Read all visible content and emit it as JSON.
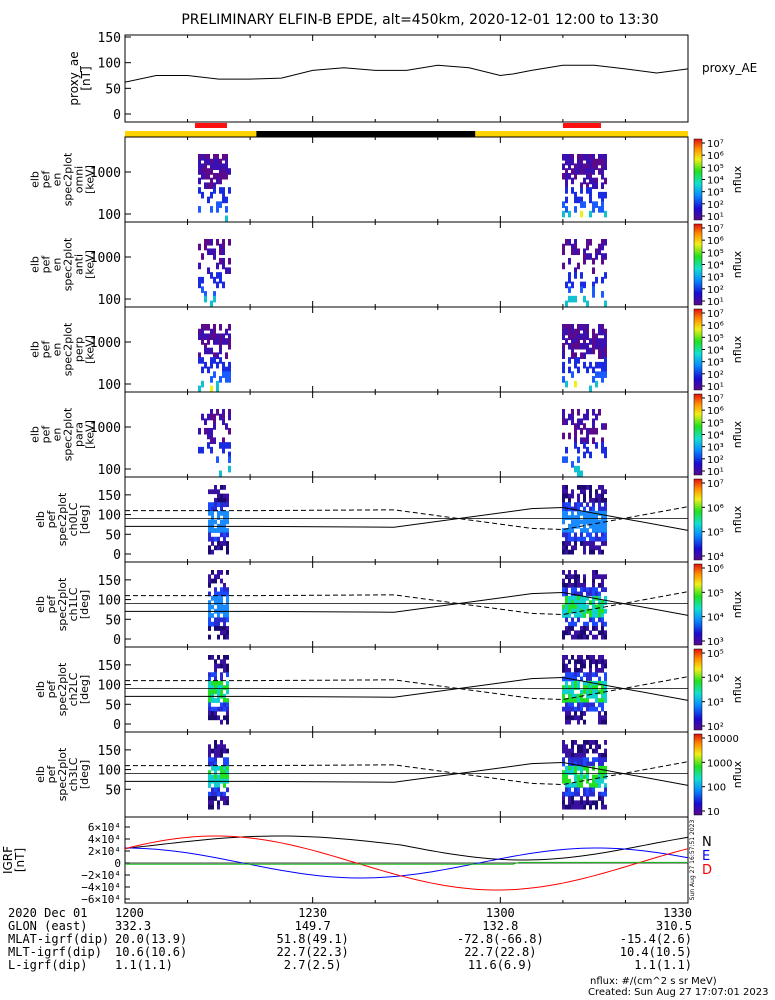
{
  "title": "PRELIMINARY ELFIN-B EPDE, alt=450km, 2020-12-01 12:00 to 13:30",
  "chart_data": {
    "type": "heatmap",
    "proxy_ae": {
      "ylabel": [
        "proxy_ae",
        "[nT]"
      ],
      "legend": "proxy_AE",
      "yticks": [
        "150",
        "100",
        "50",
        "0"
      ],
      "ylim": [
        0,
        150
      ],
      "t_min": [
        0,
        5,
        10,
        15,
        20,
        25,
        30,
        35,
        40,
        45,
        50,
        55,
        60,
        62,
        65,
        70,
        75,
        80,
        85,
        90
      ],
      "values": [
        62,
        75,
        75,
        68,
        68,
        70,
        85,
        90,
        85,
        85,
        95,
        90,
        75,
        78,
        85,
        95,
        95,
        88,
        80,
        88
      ]
    },
    "status_bar": {
      "colors": [
        "#FFD400",
        "#000000",
        "#FFD400"
      ]
    },
    "spectrogram_panels": [
      {
        "ylabel": [
          "elb",
          "pef",
          "en",
          "spec2plot",
          "omni",
          "[keV]"
        ],
        "yticks": [
          "1000",
          "100"
        ],
        "zlabel": "nflux",
        "cbar_ticks": [
          "10⁷",
          "10⁶",
          "10⁵",
          "10⁴",
          "10³",
          "10²",
          "10¹"
        ]
      },
      {
        "ylabel": [
          "elb",
          "pef",
          "en",
          "spec2plot",
          "anti",
          "[keV]"
        ],
        "yticks": [
          "1000",
          "100"
        ],
        "zlabel": "nflux",
        "cbar_ticks": [
          "10⁷",
          "10⁶",
          "10⁵",
          "10⁴",
          "10³",
          "10²",
          "10¹"
        ]
      },
      {
        "ylabel": [
          "elb",
          "pef",
          "en",
          "spec2plot",
          "perp",
          "[keV]"
        ],
        "yticks": [
          "1000",
          "100"
        ],
        "zlabel": "nflux",
        "cbar_ticks": [
          "10⁷",
          "10⁶",
          "10⁵",
          "10⁴",
          "10³",
          "10²",
          "10¹"
        ]
      },
      {
        "ylabel": [
          "elb",
          "pef",
          "en",
          "spec2plot",
          "para",
          "[keV]"
        ],
        "yticks": [
          "1000",
          "100"
        ],
        "zlabel": "nflux",
        "cbar_ticks": [
          "10⁷",
          "10⁶",
          "10⁵",
          "10⁴",
          "10³",
          "10²",
          "10¹"
        ]
      }
    ],
    "pitch_panels": [
      {
        "ylabel": [
          "elb",
          "pef",
          "spec2plot",
          "ch0LC",
          "[deg]"
        ],
        "yticks": [
          "150",
          "100",
          "50",
          "0"
        ],
        "zlabel": "nflux",
        "cbar_ticks": [
          "10⁷",
          "10⁶",
          "10⁵",
          "10⁴"
        ]
      },
      {
        "ylabel": [
          "elb",
          "pef",
          "spec2plot",
          "ch1LC",
          "[deg]"
        ],
        "yticks": [
          "150",
          "100",
          "50",
          "0"
        ],
        "zlabel": "nflux",
        "cbar_ticks": [
          "10⁶",
          "10⁵",
          "10⁴",
          "10³"
        ]
      },
      {
        "ylabel": [
          "elb",
          "pef",
          "spec2plot",
          "ch2LC",
          "[deg]"
        ],
        "yticks": [
          "150",
          "100",
          "50",
          "0"
        ],
        "zlabel": "nflux",
        "cbar_ticks": [
          "10⁵",
          "10⁴",
          "10³",
          "10²"
        ]
      },
      {
        "ylabel": [
          "elb",
          "pef",
          "spec2plot",
          "ch3LC",
          "[deg]"
        ],
        "yticks": [
          "150",
          "100",
          "50"
        ],
        "zlabel": "nflux",
        "cbar_ticks": [
          "10000",
          "1000",
          "100",
          "10"
        ]
      }
    ],
    "igrf": {
      "ylabel": [
        "IGRF",
        "[nT]"
      ],
      "yticks": [
        "6×10⁴",
        "4×10⁴",
        "2×10⁴",
        "0",
        "−2×10⁴",
        "−4×10⁴",
        "−6×10⁴"
      ],
      "ylim": [
        -60000,
        60000
      ],
      "legend": [
        "N",
        "E",
        "D"
      ],
      "legend_colors": [
        "#000000",
        "#0000FF",
        "#FF0000"
      ],
      "side_note": "Sun Aug 27 16:57:51 2023"
    },
    "x_axis": {
      "row_labels": [
        "2020 Dec 01",
        "GLON (east)",
        "MLAT-igrf(dip)",
        "MLT-igrf(dip)",
        "L-igrf(dip)"
      ],
      "ticks": [
        "1200",
        "1230",
        "1300",
        "1330"
      ],
      "glon": [
        "332.3",
        "149.7",
        "132.8",
        "310.5"
      ],
      "mlat": [
        "20.0(13.9)",
        "51.8(49.1)",
        "-72.8(-66.8)",
        "-15.4(2.6)"
      ],
      "mlt": [
        "10.6(10.6)",
        "22.7(22.3)",
        "22.7(22.8)",
        "10.4(10.5)"
      ],
      "lval": [
        "1.1(1.1)",
        "2.7(2.5)",
        "11.6(6.9)",
        "1.1(1.1)"
      ]
    },
    "footer": {
      "units": "nflux: #/(cm^2 s sr MeV)",
      "created": "Created: Sun Aug 27 17:07:01 2023"
    }
  }
}
